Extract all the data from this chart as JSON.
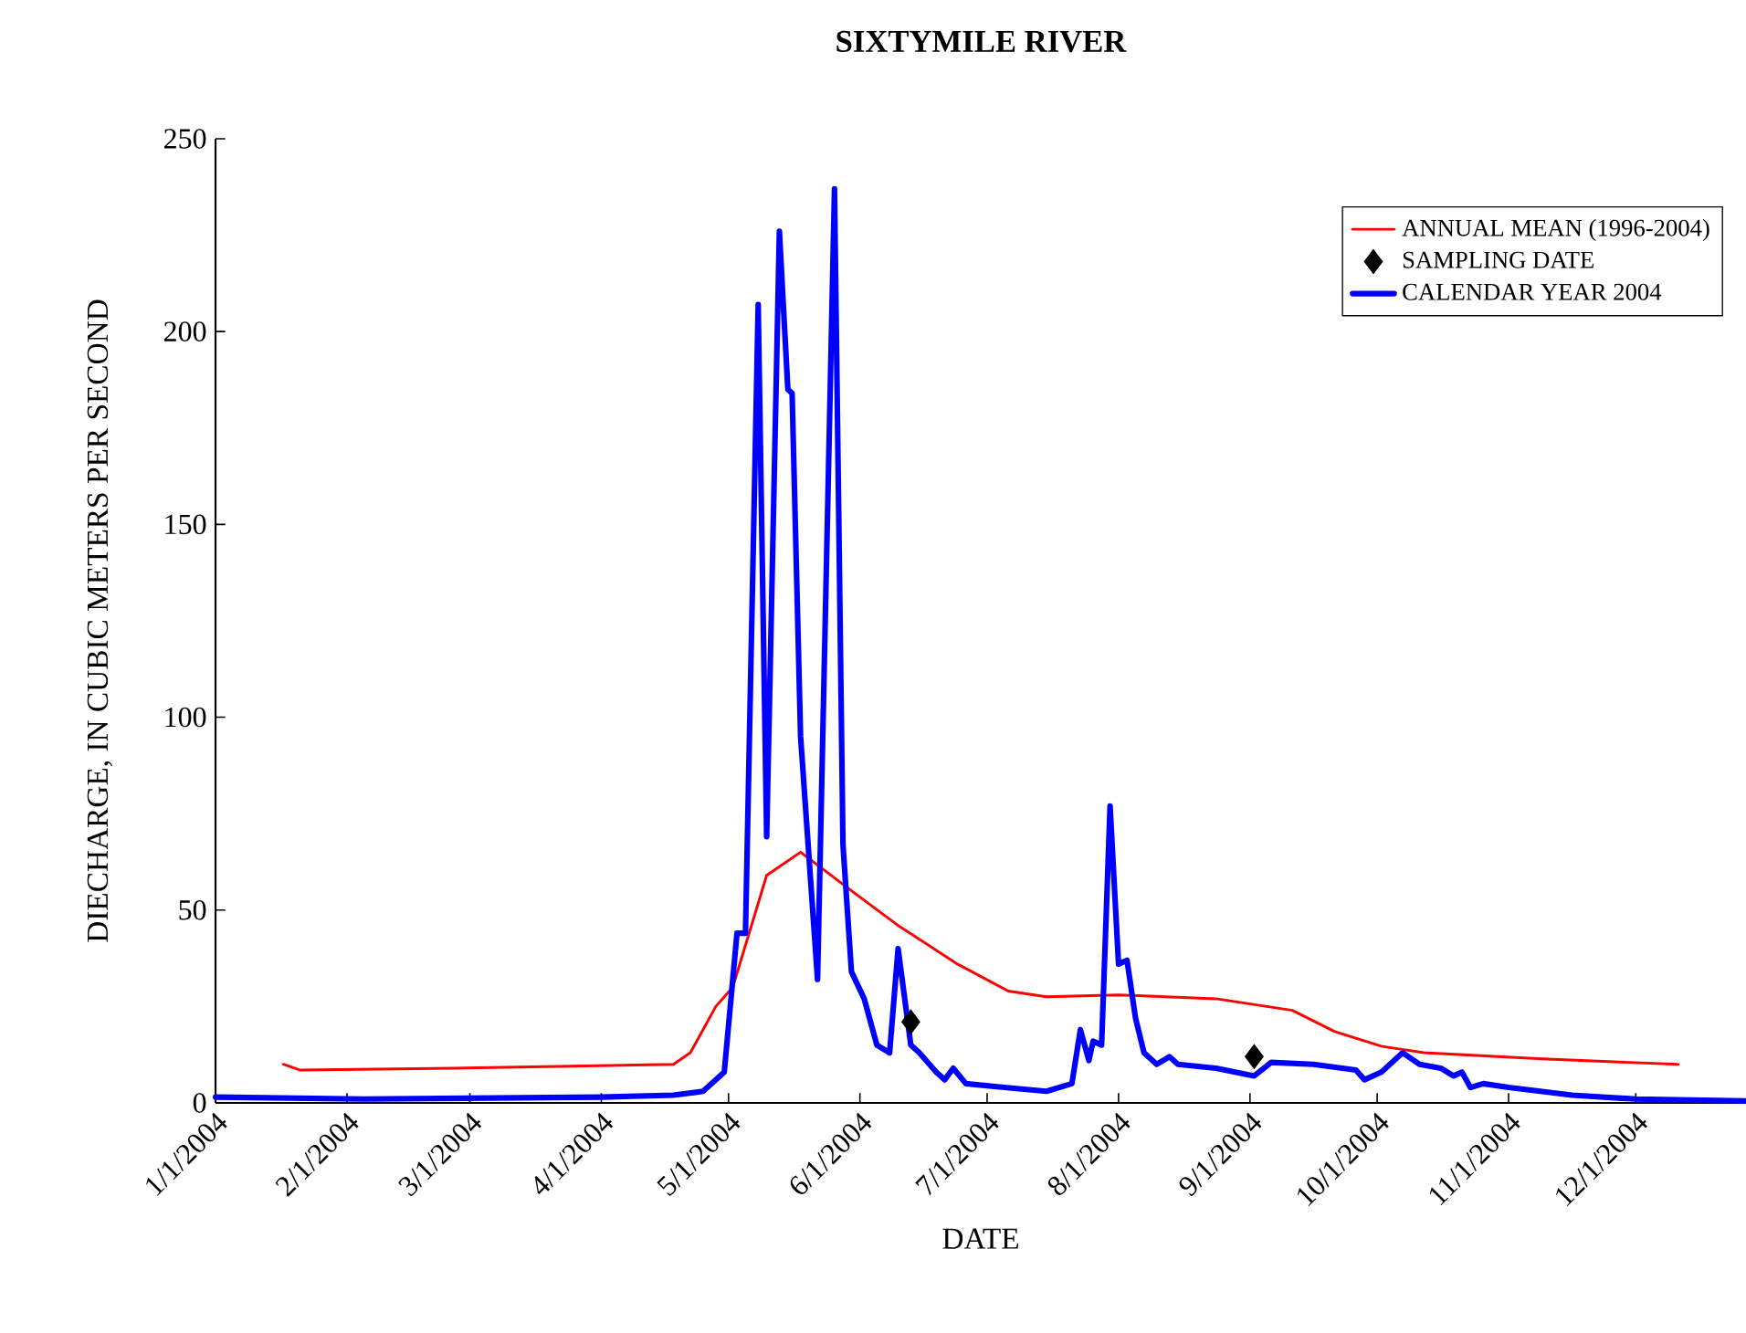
{
  "chart_data": {
    "type": "line",
    "title": "SIXTYMILE RIVER",
    "xlabel": "DATE",
    "ylabel": "DIECHARGE, IN CUBIC METERS PER SECOND",
    "xlim": [
      "2004-01-01",
      "2004-12-27"
    ],
    "ylim": [
      0,
      250
    ],
    "yticks": [
      0,
      50,
      100,
      150,
      200,
      250
    ],
    "xticks": [
      {
        "value": "2004-01-01",
        "label": "1/1/2004"
      },
      {
        "value": "2004-02-01",
        "label": "2/1/2004"
      },
      {
        "value": "2004-03-01",
        "label": "3/1/2004"
      },
      {
        "value": "2004-04-01",
        "label": "4/1/2004"
      },
      {
        "value": "2004-05-01",
        "label": "5/1/2004"
      },
      {
        "value": "2004-06-01",
        "label": "6/1/2004"
      },
      {
        "value": "2004-07-01",
        "label": "7/1/2004"
      },
      {
        "value": "2004-08-01",
        "label": "8/1/2004"
      },
      {
        "value": "2004-09-01",
        "label": "9/1/2004"
      },
      {
        "value": "2004-10-01",
        "label": "10/1/2004"
      },
      {
        "value": "2004-11-01",
        "label": "11/1/2004"
      },
      {
        "value": "2004-12-01",
        "label": "12/1/2004"
      }
    ],
    "legend": "top right",
    "grid": false,
    "series": [
      {
        "name": "ANNUAL MEAN (1996-2004)",
        "marker": "none",
        "color": "#ff0000",
        "x": [
          "2004-01-17",
          "2004-01-21",
          "2004-02-26",
          "2004-03-25",
          "2004-04-18",
          "2004-04-22",
          "2004-04-25",
          "2004-04-28",
          "2004-05-02",
          "2004-05-10",
          "2004-05-18",
          "2004-05-30",
          "2004-06-10",
          "2004-06-24",
          "2004-07-06",
          "2004-07-15",
          "2004-08-01",
          "2004-08-24",
          "2004-09-11",
          "2004-09-21",
          "2004-10-02",
          "2004-10-12",
          "2004-11-09",
          "2004-12-11"
        ],
        "values": [
          10,
          8.5,
          9,
          9.5,
          10,
          13,
          19,
          25,
          30,
          59,
          65,
          55,
          46,
          36,
          29,
          27.5,
          28,
          27,
          24,
          18.5,
          14.7,
          13,
          11.4,
          10
        ]
      },
      {
        "name": "SAMPLING DATE",
        "type": "scatter",
        "marker": "diamond",
        "color": "#000000",
        "x": [
          "2004-06-13",
          "2004-09-02"
        ],
        "values": [
          21,
          12
        ]
      },
      {
        "name": "CALENDAR YEAR 2004",
        "marker": "none",
        "color": "#0000ff",
        "x": [
          "2004-01-01",
          "2004-02-05",
          "2004-04-01",
          "2004-04-18",
          "2004-04-25",
          "2004-04-28",
          "2004-04-30",
          "2004-05-03",
          "2004-05-05",
          "2004-05-08",
          "2004-05-10",
          "2004-05-13",
          "2004-05-15",
          "2004-05-16",
          "2004-05-18",
          "2004-05-22",
          "2004-05-26",
          "2004-05-28",
          "2004-05-30",
          "2004-06-02",
          "2004-06-05",
          "2004-06-08",
          "2004-06-10",
          "2004-06-13",
          "2004-06-15",
          "2004-06-19",
          "2004-06-21",
          "2004-06-23",
          "2004-06-26",
          "2004-07-05",
          "2004-07-15",
          "2004-07-21",
          "2004-07-23",
          "2004-07-25",
          "2004-07-26",
          "2004-07-28",
          "2004-07-30",
          "2004-08-01",
          "2004-08-03",
          "2004-08-05",
          "2004-08-07",
          "2004-08-10",
          "2004-08-13",
          "2004-08-15",
          "2004-08-24",
          "2004-09-02",
          "2004-09-06",
          "2004-09-16",
          "2004-09-26",
          "2004-09-28",
          "2004-10-02",
          "2004-10-07",
          "2004-10-11",
          "2004-10-16",
          "2004-10-19",
          "2004-10-21",
          "2004-10-23",
          "2004-10-26",
          "2004-11-01",
          "2004-11-16",
          "2004-12-01",
          "2004-12-27"
        ],
        "values": [
          1.5,
          1,
          1.5,
          2,
          3,
          6,
          8,
          44,
          44,
          207,
          69,
          226,
          185,
          184,
          95,
          32,
          237,
          67,
          34,
          27,
          15,
          13,
          40,
          15,
          13,
          8,
          6,
          9,
          5,
          4,
          3,
          5,
          19,
          11,
          16,
          15,
          77,
          36,
          37,
          22,
          13,
          10,
          12,
          10,
          9,
          7,
          10.5,
          10,
          8.5,
          6,
          8,
          13,
          10,
          9,
          7,
          8,
          4,
          5,
          4,
          2,
          1,
          0.5
        ]
      }
    ]
  }
}
